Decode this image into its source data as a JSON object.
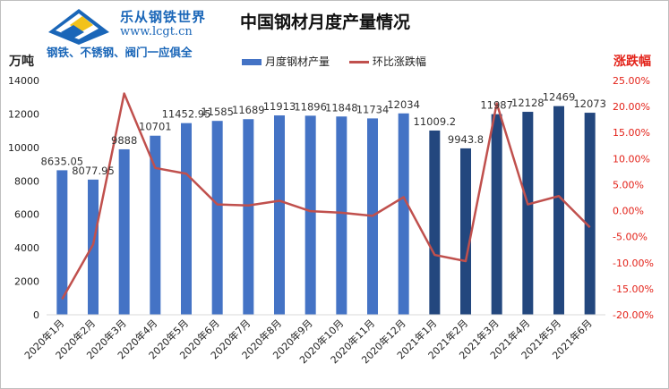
{
  "logo": {
    "name": "乐从钢铁世界",
    "url": "www.lcgt.cn",
    "slogan": "钢铁、不锈钢、阀门一应俱全"
  },
  "chart_data": {
    "type": "bar",
    "title": "中国钢材月度产量情况",
    "xlabel": "",
    "ylabel": "万吨",
    "y2label": "涨跌幅",
    "categories": [
      "2020年1月",
      "2020年2月",
      "2020年3月",
      "2020年4月",
      "2020年5月",
      "2020年6月",
      "2020年7月",
      "2020年8月",
      "2020年9月",
      "2020年10月",
      "2020年11月",
      "2020年12月",
      "2021年1月",
      "2021年2月",
      "2021年3月",
      "2021年4月",
      "2021年5月",
      "2021年6月"
    ],
    "ylim": [
      0,
      14000
    ],
    "yticks": [
      "0",
      "2000",
      "4000",
      "6000",
      "8000",
      "10000",
      "12000",
      "14000"
    ],
    "y2lim": [
      -20,
      25
    ],
    "y2ticks": [
      "-20.00%",
      "-15.00%",
      "-10.00%",
      "-5.00%",
      "0.00%",
      "5.00%",
      "10.00%",
      "15.00%",
      "20.00%",
      "25.00%"
    ],
    "series": [
      {
        "name": "月度钢材产量",
        "type": "bar",
        "axis": "left",
        "values": [
          8635.05,
          8077.95,
          9888,
          10701,
          11452.95,
          11585,
          11689,
          11913,
          11896,
          11848,
          11734,
          12034,
          11009.2,
          9943.8,
          11987,
          12128,
          12469,
          12073
        ],
        "labels": [
          "8635.05",
          "8077.95",
          "9888",
          "10701",
          "11452.95",
          "11585",
          "11689",
          "11913",
          "11896",
          "11848",
          "11734",
          "12034",
          "11009.2",
          "9943.8",
          "11987",
          "12128",
          "12469",
          "12073"
        ]
      },
      {
        "name": "环比涨跌幅",
        "type": "line",
        "axis": "right",
        "values": [
          -17.0,
          -6.5,
          22.5,
          8.2,
          7.1,
          1.2,
          1.0,
          1.9,
          -0.1,
          -0.4,
          -1.0,
          2.6,
          -8.5,
          -9.7,
          20.6,
          1.2,
          2.8,
          -3.2
        ]
      }
    ],
    "grid": false,
    "legend": "top-center",
    "colors": {
      "bar_2020": "#4473c5",
      "bar_2021": "#23477e",
      "line": "#c0504d",
      "left_axis_text": "#222222",
      "right_axis_text": "#e32219"
    }
  }
}
